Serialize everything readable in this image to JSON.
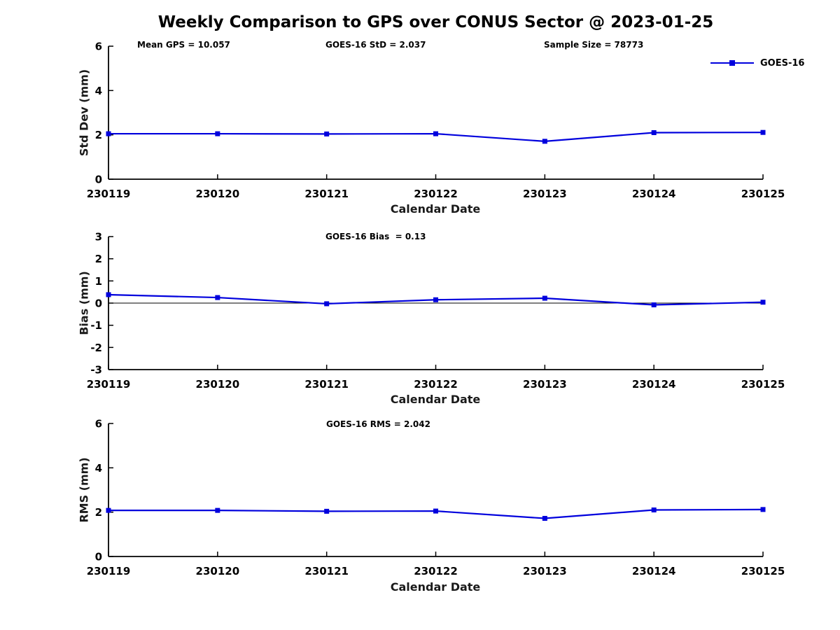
{
  "title": "Weekly Comparison to GPS over CONUS Sector @ 2023-01-25",
  "legend": {
    "label": "GOES-16"
  },
  "colors": {
    "line": "#0000dd",
    "axis": "#000000",
    "text": "#000000",
    "background": "#ffffff"
  },
  "chart_data": [
    {
      "type": "line",
      "ylabel": "Std Dev (mm)",
      "xlabel": "Calendar Date",
      "categories": [
        "230119",
        "230120",
        "230121",
        "230122",
        "230123",
        "230124",
        "230125"
      ],
      "series": [
        {
          "name": "GOES-16",
          "color": "#0000dd",
          "marker": "square",
          "values": [
            2.05,
            2.05,
            2.04,
            2.05,
            1.71,
            2.1,
            2.11
          ]
        }
      ],
      "ylim": [
        0,
        6
      ],
      "yticks": [
        6,
        4,
        2,
        0
      ],
      "grid": false,
      "zero_line": false,
      "legend_position": "top-right-outside",
      "annotations": [
        "Mean GPS = 10.057",
        "GOES-16 StD = 2.037",
        "Sample Size = 78773"
      ]
    },
    {
      "type": "line",
      "ylabel": "Bias (mm)",
      "xlabel": "Calendar Date",
      "categories": [
        "230119",
        "230120",
        "230121",
        "230122",
        "230123",
        "230124",
        "230125"
      ],
      "series": [
        {
          "name": "GOES-16",
          "color": "#0000dd",
          "marker": "square",
          "values": [
            0.38,
            0.25,
            -0.03,
            0.15,
            0.22,
            -0.08,
            0.04
          ]
        }
      ],
      "ylim": [
        -3,
        3
      ],
      "yticks": [
        3,
        2,
        1,
        0,
        -1,
        -2,
        -3
      ],
      "grid": false,
      "zero_line": true,
      "annotations": [
        "GOES-16 Bias  = 0.13"
      ]
    },
    {
      "type": "line",
      "ylabel": "RMS (mm)",
      "xlabel": "Calendar Date",
      "categories": [
        "230119",
        "230120",
        "230121",
        "230122",
        "230123",
        "230124",
        "230125"
      ],
      "series": [
        {
          "name": "GOES-16",
          "color": "#0000dd",
          "marker": "square",
          "values": [
            2.08,
            2.08,
            2.04,
            2.05,
            1.72,
            2.1,
            2.12
          ]
        }
      ],
      "ylim": [
        0,
        6
      ],
      "yticks": [
        6,
        4,
        2,
        0
      ],
      "grid": false,
      "zero_line": false,
      "annotations": [
        "GOES-16 RMS = 2.042"
      ]
    }
  ]
}
